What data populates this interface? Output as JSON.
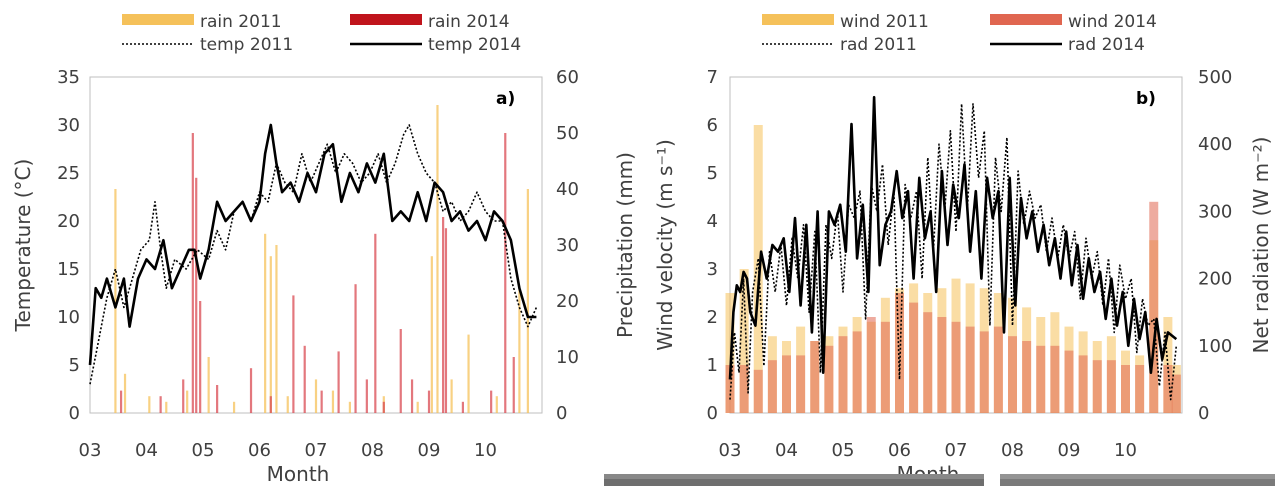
{
  "chart_data": [
    {
      "type": "bar",
      "panel_label": "a)",
      "xlabel": "Month",
      "ylabel": "Temperature (°C)",
      "y2label": "Precipitation (mm)",
      "ylim": [
        0,
        35
      ],
      "y2lim": [
        0,
        60
      ],
      "yticks": [
        0,
        5,
        10,
        15,
        20,
        25,
        30,
        35
      ],
      "y2ticks": [
        0,
        10,
        20,
        30,
        40,
        50,
        60
      ],
      "xticks": [
        "03",
        "04",
        "05",
        "06",
        "07",
        "08",
        "09",
        "10"
      ],
      "grid": false,
      "legend_position": "top",
      "series": [
        {
          "name": "rain 2011",
          "kind": "bar",
          "axis": "right",
          "color": "#f5c15a",
          "x": [
            3.45,
            3.62,
            4.05,
            4.35,
            4.72,
            5.1,
            5.55,
            6.1,
            6.2,
            6.3,
            6.5,
            7.0,
            7.3,
            7.6,
            8.2,
            8.8,
            9.05,
            9.15,
            9.4,
            9.7,
            10.2,
            10.6,
            10.75
          ],
          "y": [
            40,
            7,
            3,
            2,
            4,
            10,
            2,
            32,
            28,
            30,
            3,
            6,
            4,
            2,
            3,
            2,
            28,
            55,
            6,
            14,
            3,
            22,
            40
          ]
        },
        {
          "name": "rain 2014",
          "kind": "bar",
          "axis": "right",
          "color": "#d94a52",
          "x": [
            3.55,
            4.25,
            4.65,
            4.82,
            4.88,
            4.95,
            5.25,
            5.85,
            6.2,
            6.6,
            6.8,
            7.1,
            7.4,
            7.7,
            7.9,
            8.05,
            8.2,
            8.5,
            8.7,
            9.0,
            9.25,
            9.3,
            9.6,
            10.1,
            10.35,
            10.5
          ],
          "y": [
            4,
            3,
            6,
            50,
            42,
            20,
            5,
            8,
            3,
            21,
            12,
            4,
            11,
            23,
            6,
            32,
            2,
            15,
            6,
            4,
            35,
            33,
            2,
            4,
            50,
            10
          ]
        },
        {
          "name": "temp 2011",
          "kind": "line",
          "axis": "left",
          "style": "dotted",
          "color": "#000000",
          "x": [
            3.0,
            3.1,
            3.2,
            3.3,
            3.45,
            3.6,
            3.75,
            3.9,
            4.05,
            4.15,
            4.25,
            4.35,
            4.5,
            4.7,
            4.9,
            5.1,
            5.25,
            5.4,
            5.55,
            5.7,
            5.85,
            6.0,
            6.15,
            6.3,
            6.45,
            6.6,
            6.75,
            6.9,
            7.05,
            7.2,
            7.35,
            7.5,
            7.65,
            7.8,
            7.95,
            8.1,
            8.25,
            8.4,
            8.55,
            8.65,
            8.8,
            8.95,
            9.1,
            9.25,
            9.4,
            9.55,
            9.7,
            9.85,
            10.0,
            10.15,
            10.3,
            10.45,
            10.6,
            10.75,
            10.9
          ],
          "y": [
            3,
            6,
            9,
            12,
            15,
            11,
            14,
            17,
            18,
            22,
            17,
            13,
            16,
            15,
            17,
            16,
            19,
            17,
            21,
            22,
            20,
            23,
            22,
            26,
            24,
            23,
            27,
            24,
            26,
            28,
            25,
            27,
            26,
            24,
            25,
            27,
            24,
            26,
            29,
            30,
            27,
            25,
            24,
            21,
            22,
            20,
            21,
            23,
            21,
            20,
            20,
            14,
            11,
            9,
            11
          ]
        },
        {
          "name": "temp 2014",
          "kind": "line",
          "axis": "left",
          "style": "solid",
          "color": "#000000",
          "x": [
            3.0,
            3.1,
            3.2,
            3.3,
            3.45,
            3.6,
            3.7,
            3.85,
            4.0,
            4.15,
            4.3,
            4.45,
            4.6,
            4.75,
            4.85,
            4.95,
            5.1,
            5.25,
            5.4,
            5.55,
            5.7,
            5.85,
            6.0,
            6.1,
            6.2,
            6.3,
            6.4,
            6.55,
            6.7,
            6.85,
            7.0,
            7.15,
            7.3,
            7.45,
            7.6,
            7.75,
            7.9,
            8.05,
            8.2,
            8.35,
            8.5,
            8.65,
            8.8,
            8.95,
            9.1,
            9.25,
            9.4,
            9.55,
            9.7,
            9.85,
            10.0,
            10.15,
            10.3,
            10.45,
            10.6,
            10.75,
            10.9
          ],
          "y": [
            5,
            13,
            12,
            14,
            11,
            14,
            9,
            14,
            16,
            15,
            18,
            13,
            15,
            17,
            17,
            14,
            17,
            22,
            20,
            21,
            22,
            20,
            22,
            27,
            30,
            26,
            23,
            24,
            22,
            25,
            23,
            27,
            28,
            22,
            25,
            23,
            26,
            24,
            27,
            20,
            21,
            20,
            23,
            20,
            24,
            23,
            20,
            21,
            19,
            20,
            18,
            21,
            20,
            18,
            13,
            10,
            10
          ]
        }
      ]
    },
    {
      "type": "bar",
      "panel_label": "b)",
      "xlabel": "Month",
      "ylabel": "Wind velocity (m s⁻¹)",
      "y2label": "Net radiation (W m⁻²)",
      "ylim": [
        0,
        7
      ],
      "y2lim": [
        0,
        500
      ],
      "yticks": [
        0,
        1,
        2,
        3,
        4,
        5,
        6,
        7
      ],
      "y2ticks": [
        0,
        100,
        200,
        300,
        400,
        500
      ],
      "xticks": [
        "03",
        "04",
        "05",
        "06",
        "07",
        "08",
        "09",
        "10"
      ],
      "grid": false,
      "legend_position": "top",
      "series": [
        {
          "name": "wind 2011",
          "kind": "bar",
          "axis": "left",
          "color": "#f5c15a",
          "x": [
            3.0,
            3.25,
            3.5,
            3.75,
            4.0,
            4.25,
            4.5,
            4.75,
            5.0,
            5.25,
            5.5,
            5.75,
            6.0,
            6.25,
            6.5,
            6.75,
            7.0,
            7.25,
            7.5,
            7.75,
            8.0,
            8.25,
            8.5,
            8.75,
            9.0,
            9.25,
            9.5,
            9.75,
            10.0,
            10.25,
            10.5,
            10.75,
            10.9
          ],
          "y": [
            2.5,
            3.0,
            6.0,
            1.6,
            1.5,
            1.8,
            1.5,
            1.6,
            1.8,
            2.0,
            1.9,
            2.4,
            2.6,
            2.7,
            2.5,
            2.6,
            2.8,
            2.7,
            2.6,
            2.5,
            2.4,
            2.2,
            2.0,
            2.1,
            1.8,
            1.7,
            1.5,
            1.6,
            1.3,
            1.2,
            3.6,
            2.0,
            1.0
          ]
        },
        {
          "name": "wind 2014",
          "kind": "bar",
          "axis": "left",
          "color": "#e06650",
          "x": [
            3.0,
            3.25,
            3.5,
            3.75,
            4.0,
            4.25,
            4.5,
            4.75,
            5.0,
            5.25,
            5.5,
            5.75,
            6.0,
            6.25,
            6.5,
            6.75,
            7.0,
            7.25,
            7.5,
            7.75,
            8.0,
            8.25,
            8.5,
            8.75,
            9.0,
            9.25,
            9.5,
            9.75,
            10.0,
            10.25,
            10.5,
            10.75,
            10.9
          ],
          "y": [
            1.0,
            1.0,
            0.9,
            1.1,
            1.2,
            1.2,
            1.5,
            1.4,
            1.6,
            1.7,
            2.0,
            1.9,
            2.5,
            2.3,
            2.1,
            2.0,
            1.9,
            1.8,
            1.7,
            1.8,
            1.6,
            1.5,
            1.4,
            1.4,
            1.3,
            1.2,
            1.1,
            1.1,
            1.0,
            1.0,
            4.4,
            1.0,
            0.8
          ]
        },
        {
          "name": "rad 2011",
          "kind": "line",
          "axis": "right",
          "style": "dotted",
          "color": "#000000",
          "x": [
            3.0,
            3.08,
            3.16,
            3.24,
            3.32,
            3.4,
            3.5,
            3.6,
            3.7,
            3.8,
            3.9,
            4.0,
            4.1,
            4.2,
            4.3,
            4.4,
            4.5,
            4.6,
            4.7,
            4.8,
            4.9,
            5.0,
            5.1,
            5.2,
            5.3,
            5.4,
            5.5,
            5.6,
            5.7,
            5.8,
            5.9,
            6.0,
            6.1,
            6.2,
            6.3,
            6.4,
            6.5,
            6.6,
            6.7,
            6.8,
            6.9,
            7.0,
            7.1,
            7.2,
            7.3,
            7.4,
            7.5,
            7.6,
            7.7,
            7.8,
            7.9,
            8.0,
            8.1,
            8.2,
            8.3,
            8.4,
            8.5,
            8.6,
            8.7,
            8.8,
            8.9,
            9.0,
            9.1,
            9.2,
            9.3,
            9.4,
            9.5,
            9.6,
            9.7,
            9.8,
            9.9,
            10.0,
            10.1,
            10.2,
            10.3,
            10.4,
            10.5,
            10.6,
            10.7,
            10.8,
            10.9
          ],
          "y": [
            20,
            120,
            60,
            200,
            30,
            180,
            230,
            70,
            240,
            180,
            250,
            160,
            260,
            200,
            280,
            150,
            270,
            60,
            280,
            230,
            300,
            180,
            310,
            290,
            330,
            140,
            340,
            300,
            370,
            250,
            330,
            50,
            340,
            290,
            330,
            200,
            380,
            240,
            400,
            300,
            420,
            270,
            460,
            300,
            460,
            350,
            420,
            130,
            380,
            300,
            410,
            130,
            360,
            280,
            330,
            290,
            310,
            240,
            290,
            230,
            280,
            230,
            270,
            170,
            260,
            200,
            240,
            160,
            230,
            120,
            220,
            170,
            200,
            90,
            170,
            130,
            140,
            40,
            120,
            20,
            100
          ]
        },
        {
          "name": "rad 2014",
          "kind": "line",
          "axis": "right",
          "style": "solid",
          "color": "#000000",
          "x": [
            3.0,
            3.06,
            3.12,
            3.18,
            3.24,
            3.3,
            3.36,
            3.45,
            3.55,
            3.65,
            3.75,
            3.85,
            3.95,
            4.05,
            4.15,
            4.25,
            4.35,
            4.45,
            4.55,
            4.65,
            4.75,
            4.85,
            4.95,
            5.05,
            5.15,
            5.25,
            5.35,
            5.45,
            5.55,
            5.65,
            5.75,
            5.85,
            5.95,
            6.05,
            6.15,
            6.25,
            6.35,
            6.45,
            6.55,
            6.65,
            6.75,
            6.85,
            6.95,
            7.05,
            7.15,
            7.25,
            7.35,
            7.45,
            7.55,
            7.65,
            7.75,
            7.85,
            7.95,
            8.05,
            8.15,
            8.25,
            8.35,
            8.45,
            8.55,
            8.65,
            8.75,
            8.85,
            8.95,
            9.05,
            9.15,
            9.25,
            9.35,
            9.45,
            9.55,
            9.65,
            9.75,
            9.85,
            9.95,
            10.05,
            10.15,
            10.25,
            10.35,
            10.45,
            10.55,
            10.65,
            10.75,
            10.9
          ],
          "y": [
            50,
            150,
            190,
            180,
            210,
            200,
            150,
            130,
            240,
            200,
            250,
            240,
            260,
            180,
            290,
            160,
            280,
            120,
            300,
            60,
            300,
            280,
            310,
            240,
            430,
            230,
            310,
            180,
            470,
            220,
            280,
            300,
            360,
            290,
            330,
            200,
            350,
            260,
            300,
            180,
            360,
            250,
            340,
            290,
            370,
            240,
            330,
            200,
            350,
            290,
            330,
            120,
            350,
            160,
            320,
            260,
            300,
            240,
            280,
            220,
            260,
            200,
            270,
            190,
            250,
            170,
            230,
            180,
            210,
            140,
            200,
            130,
            180,
            100,
            170,
            110,
            150,
            60,
            140,
            80,
            120,
            110
          ]
        }
      ]
    }
  ]
}
